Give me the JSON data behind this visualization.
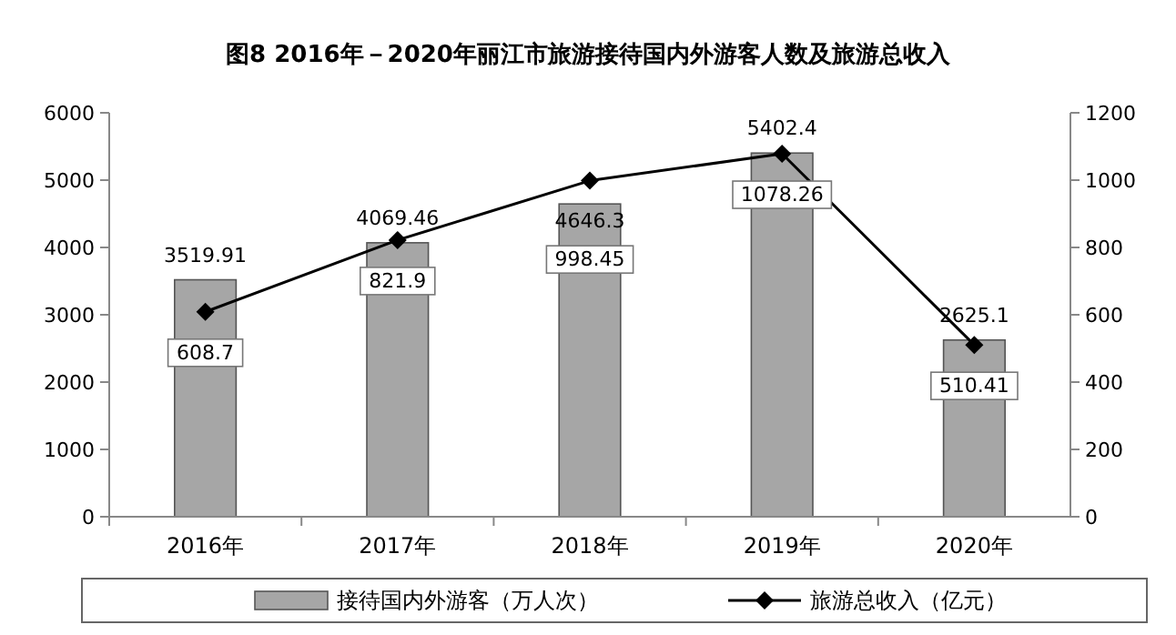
{
  "chart_data": {
    "type": "bar",
    "title": "图8  2016年－2020年丽江市旅游接待国内外游客人数及旅游总收入",
    "categories": [
      "2016年",
      "2017年",
      "2018年",
      "2019年",
      "2020年"
    ],
    "series": [
      {
        "name": "接待国内外游客（万人次）",
        "color": "#a6a6a6",
        "values": [
          3519.91,
          4069.46,
          4646.3,
          5402.4,
          2625.1
        ]
      },
      {
        "name": "旅游总收入（亿元）",
        "type": "line",
        "axis": "y2",
        "color": "#000000",
        "marker": "diamond",
        "values": [
          608.7,
          821.9,
          998.45,
          1078.26,
          510.41
        ]
      }
    ],
    "ylim": [
      0,
      6000
    ],
    "yticks": [
      0,
      1000,
      2000,
      3000,
      4000,
      5000,
      6000
    ],
    "y2lim": [
      0,
      1200
    ],
    "y2ticks": [
      0,
      200,
      400,
      600,
      800,
      1000,
      1200
    ],
    "data_labels": true,
    "legend": "bottom",
    "grid": false
  }
}
